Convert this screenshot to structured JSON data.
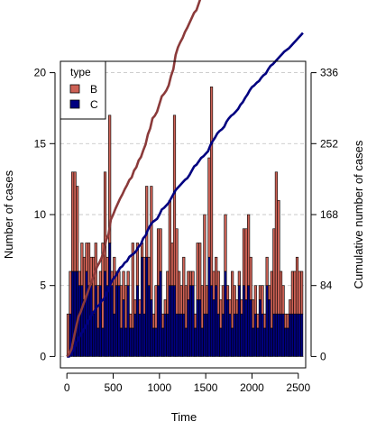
{
  "chart_data": {
    "type": "bar",
    "title": "",
    "xlabel": "Time",
    "ylabel": "Number of cases",
    "ylabel_right": "Cumulative number of cases",
    "xlim": [
      -70,
      2580
    ],
    "ylim": [
      -0.8,
      20.8
    ],
    "ylim_right": [
      0,
      336
    ],
    "xticks": [
      0,
      500,
      1000,
      1500,
      2000,
      2500
    ],
    "yticks": [
      0,
      5,
      10,
      15,
      20
    ],
    "yticks_right": [
      0,
      84,
      168,
      252,
      336
    ],
    "grid": true,
    "legend": {
      "title": "type",
      "position": "top-left"
    },
    "bin_width": 25,
    "x": [
      0,
      25,
      50,
      75,
      100,
      125,
      150,
      175,
      200,
      225,
      250,
      275,
      300,
      325,
      350,
      375,
      400,
      425,
      450,
      475,
      500,
      525,
      550,
      575,
      600,
      625,
      650,
      675,
      700,
      725,
      750,
      775,
      800,
      825,
      850,
      875,
      900,
      925,
      950,
      975,
      1000,
      1025,
      1050,
      1075,
      1100,
      1125,
      1150,
      1175,
      1200,
      1225,
      1250,
      1275,
      1300,
      1325,
      1350,
      1375,
      1400,
      1425,
      1450,
      1475,
      1500,
      1525,
      1550,
      1575,
      1600,
      1625,
      1650,
      1675,
      1700,
      1725,
      1750,
      1775,
      1800,
      1825,
      1850,
      1875,
      1900,
      1925,
      1950,
      1975,
      2000,
      2025,
      2050,
      2075,
      2100,
      2125,
      2150,
      2175,
      2200,
      2225,
      2250,
      2275,
      2300,
      2325,
      2350,
      2375,
      2400,
      2425,
      2450,
      2475,
      2500,
      2525
    ],
    "series": [
      {
        "name": "B",
        "color": "#CD6155",
        "values": [
          3,
          3,
          7,
          7,
          6,
          1,
          3,
          3,
          2,
          3,
          2,
          4,
          3,
          3,
          1,
          6,
          7,
          2,
          9,
          1,
          4,
          1,
          1,
          3,
          2,
          3,
          1,
          1,
          6,
          1,
          3,
          1,
          1,
          4,
          5,
          2,
          8,
          1,
          3,
          4,
          3,
          1,
          1,
          3,
          6,
          3,
          12,
          6,
          3,
          2,
          4,
          3,
          2,
          1,
          1,
          1,
          4,
          4,
          3,
          7,
          2,
          7,
          14,
          2,
          2,
          3,
          2,
          2,
          4,
          1,
          1,
          4,
          2,
          1,
          1,
          1,
          4,
          5,
          5,
          3,
          2,
          2,
          1,
          1,
          2,
          1,
          2,
          1,
          4,
          6,
          10,
          8,
          3,
          2,
          1,
          1,
          1,
          3,
          3,
          4,
          3,
          3
        ]
      },
      {
        "name": "C",
        "color": "#000080",
        "values": [
          0,
          3,
          6,
          6,
          6,
          5,
          5,
          4,
          6,
          5,
          5,
          3,
          5,
          2,
          5,
          2,
          6,
          5,
          8,
          5,
          3,
          5,
          5,
          2,
          4,
          2,
          5,
          2,
          2,
          3,
          5,
          3,
          7,
          3,
          7,
          5,
          4,
          2,
          2,
          5,
          6,
          2,
          3,
          3,
          5,
          5,
          5,
          3,
          3,
          3,
          3,
          2,
          4,
          5,
          5,
          2,
          4,
          4,
          2,
          3,
          3,
          7,
          5,
          4,
          5,
          3,
          2,
          3,
          6,
          4,
          3,
          2,
          3,
          3,
          5,
          3,
          5,
          4,
          5,
          4,
          2,
          3,
          2,
          4,
          3,
          2,
          5,
          4,
          2,
          3,
          3,
          3,
          3,
          3,
          2,
          2,
          3,
          3,
          3,
          3,
          3,
          3
        ]
      }
    ],
    "cumulative": [
      {
        "name": "B",
        "color": "#8B3A3A"
      },
      {
        "name": "C",
        "color": "#000080"
      }
    ]
  }
}
